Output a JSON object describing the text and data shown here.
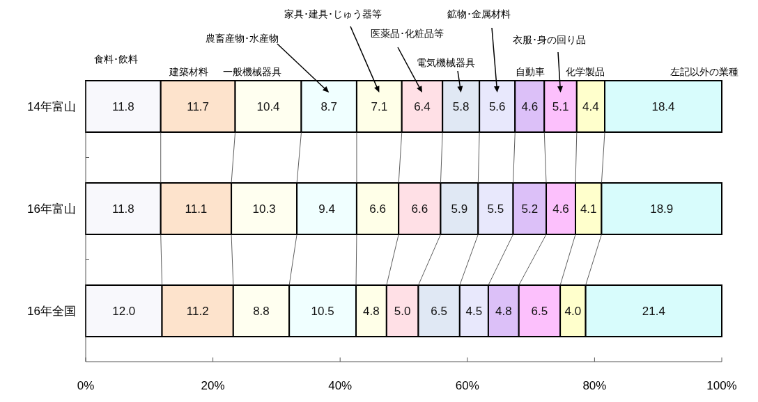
{
  "chart_data": {
    "type": "bar",
    "orientation": "horizontal",
    "stacked": true,
    "categories": [
      "14年富山",
      "16年富山",
      "16年全国"
    ],
    "series": [
      {
        "name": "食料･飲料",
        "color": "#f8f8fc",
        "values": [
          11.8,
          11.8,
          12.0
        ],
        "value_labels": [
          "11.8",
          "11.8",
          "12.0"
        ]
      },
      {
        "name": "建築材料",
        "color": "#fde3cc",
        "values": [
          11.7,
          11.1,
          11.2
        ],
        "value_labels": [
          "11.7",
          "11.1",
          "11.2"
        ]
      },
      {
        "name": "一般機械器具",
        "color": "#fffff0",
        "values": [
          10.4,
          10.3,
          8.8
        ],
        "value_labels": [
          "10.4",
          "10.3",
          "8.8"
        ]
      },
      {
        "name": "農畜産物･水産物",
        "color": "#f0ffff",
        "values": [
          8.7,
          9.4,
          10.5
        ],
        "value_labels": [
          "8.7",
          "9.4",
          "10.5"
        ]
      },
      {
        "name": "家具･建具･じゅう器等",
        "color": "#ffffe8",
        "values": [
          7.1,
          6.6,
          4.8
        ],
        "value_labels": [
          "7.1",
          "6.6",
          "4.8"
        ]
      },
      {
        "name": "医薬品･化粧品等",
        "color": "#ffe0e6",
        "values": [
          6.4,
          6.6,
          5.0
        ],
        "value_labels": [
          "6.4",
          "6.6",
          "5.0"
        ]
      },
      {
        "name": "電気機械器具",
        "color": "#e0e8f4",
        "values": [
          5.8,
          5.9,
          6.5
        ],
        "value_labels": [
          "5.8",
          "5.9",
          "6.5"
        ]
      },
      {
        "name": "鉱物･金属材料",
        "color": "#e8e8fc",
        "values": [
          5.6,
          5.5,
          4.5
        ],
        "value_labels": [
          "5.6",
          "5.5",
          "4.5"
        ]
      },
      {
        "name": "自動車",
        "color": "#dcc0f8",
        "values": [
          4.6,
          5.2,
          4.8
        ],
        "value_labels": [
          "4.6",
          "5.2",
          "4.8"
        ]
      },
      {
        "name": "衣服･身の回り品",
        "color": "#fcc0fc",
        "values": [
          5.1,
          4.6,
          6.5
        ],
        "value_labels": [
          "5.1",
          "4.6",
          "6.5"
        ]
      },
      {
        "name": "化学製品",
        "color": "#ffffcc",
        "values": [
          4.4,
          4.1,
          4.0
        ],
        "value_labels": [
          "4.4",
          "4.1",
          "4.0"
        ]
      },
      {
        "name": "左記以外の業種",
        "color": "#d8fcfc",
        "values": [
          18.4,
          18.9,
          21.4
        ],
        "value_labels": [
          "18.4",
          "18.9",
          "21.4"
        ]
      }
    ],
    "xlim": [
      0,
      100
    ],
    "xticks": [
      {
        "value": 0,
        "label": "0%"
      },
      {
        "value": 20,
        "label": "20%"
      },
      {
        "value": 40,
        "label": "40%"
      },
      {
        "value": 60,
        "label": "60%"
      },
      {
        "value": 80,
        "label": "80%"
      },
      {
        "value": 100,
        "label": "100%"
      }
    ],
    "grid": false
  }
}
